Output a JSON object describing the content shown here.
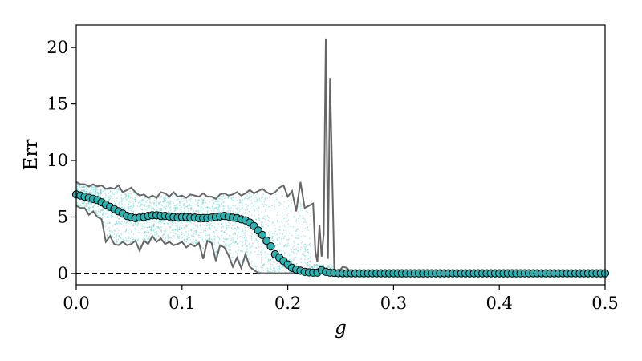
{
  "chart_data": {
    "type": "scatter",
    "xlabel": "g",
    "ylabel": "Err",
    "xlim": [
      0.0,
      0.5
    ],
    "ylim": [
      -1.0,
      22.0
    ],
    "x_ticks": [
      0.0,
      0.1,
      0.2,
      0.3,
      0.4,
      0.5
    ],
    "x_tick_labels": [
      "0.0",
      "0.1",
      "0.2",
      "0.3",
      "0.4",
      "0.5"
    ],
    "y_ticks": [
      0,
      5,
      10,
      15,
      20
    ],
    "y_tick_labels": [
      "0",
      "5",
      "10",
      "15",
      "20"
    ],
    "grid": false,
    "reference_line": {
      "y": 0.0,
      "x_range": [
        0.0,
        0.2
      ],
      "style": "dashed"
    },
    "colors": {
      "markers_fill": "#2bb3b3",
      "markers_edge": "#000000",
      "envelope": "#666666",
      "samples": "#34c4c4",
      "reference": "#000000"
    },
    "series": [
      {
        "role": "mean",
        "x": [
          0.0,
          0.004,
          0.008,
          0.012,
          0.016,
          0.02,
          0.024,
          0.028,
          0.032,
          0.036,
          0.04,
          0.044,
          0.048,
          0.052,
          0.056,
          0.06,
          0.064,
          0.068,
          0.072,
          0.076,
          0.08,
          0.084,
          0.088,
          0.092,
          0.096,
          0.1,
          0.104,
          0.108,
          0.112,
          0.116,
          0.12,
          0.124,
          0.128,
          0.132,
          0.136,
          0.14,
          0.144,
          0.148,
          0.152,
          0.156,
          0.16,
          0.164,
          0.168,
          0.172,
          0.176,
          0.18,
          0.184,
          0.188,
          0.192,
          0.196,
          0.2,
          0.204,
          0.208,
          0.212,
          0.216,
          0.22,
          0.224,
          0.228,
          0.232,
          0.236,
          0.24,
          0.244,
          0.248,
          0.252,
          0.256,
          0.26,
          0.264,
          0.268,
          0.272,
          0.276,
          0.28,
          0.284,
          0.288,
          0.292,
          0.296,
          0.3,
          0.304,
          0.308,
          0.312,
          0.316,
          0.32,
          0.324,
          0.328,
          0.332,
          0.336,
          0.34,
          0.344,
          0.348,
          0.352,
          0.356,
          0.36,
          0.364,
          0.368,
          0.372,
          0.376,
          0.38,
          0.384,
          0.388,
          0.392,
          0.396,
          0.4,
          0.404,
          0.408,
          0.412,
          0.416,
          0.42,
          0.424,
          0.428,
          0.432,
          0.436,
          0.44,
          0.444,
          0.448,
          0.452,
          0.456,
          0.46,
          0.464,
          0.468,
          0.472,
          0.476,
          0.48,
          0.484,
          0.488,
          0.492,
          0.496,
          0.5
        ],
        "y": [
          7.0,
          6.9,
          6.8,
          6.7,
          6.6,
          6.5,
          6.3,
          6.1,
          5.9,
          5.7,
          5.5,
          5.3,
          5.1,
          5.0,
          4.9,
          4.95,
          5.0,
          5.1,
          5.15,
          5.15,
          5.1,
          5.1,
          5.05,
          5.0,
          4.95,
          5.0,
          5.0,
          4.95,
          4.95,
          4.9,
          4.9,
          4.9,
          4.95,
          5.0,
          5.05,
          5.1,
          5.05,
          4.95,
          4.9,
          4.8,
          4.7,
          4.5,
          4.2,
          3.8,
          3.4,
          2.9,
          2.4,
          1.7,
          1.4,
          1.1,
          0.8,
          0.5,
          0.35,
          0.25,
          0.15,
          0.1,
          0.08,
          0.08,
          0.3,
          0.15,
          0.08,
          0.05,
          0.03,
          0.02,
          0.02,
          0.02,
          0.02,
          0.02,
          0.02,
          0.02,
          0.02,
          0.02,
          0.02,
          0.02,
          0.02,
          0.02,
          0.02,
          0.02,
          0.02,
          0.02,
          0.02,
          0.02,
          0.02,
          0.02,
          0.02,
          0.02,
          0.02,
          0.02,
          0.02,
          0.02,
          0.02,
          0.02,
          0.02,
          0.02,
          0.02,
          0.02,
          0.02,
          0.02,
          0.02,
          0.02,
          0.02,
          0.02,
          0.02,
          0.02,
          0.02,
          0.02,
          0.02,
          0.02,
          0.02,
          0.02,
          0.02,
          0.02,
          0.02,
          0.02,
          0.02,
          0.02,
          0.02,
          0.02,
          0.02,
          0.02,
          0.02,
          0.02,
          0.02,
          0.02,
          0.02,
          0.02
        ]
      },
      {
        "role": "upper",
        "x": [
          0.0,
          0.004,
          0.008,
          0.012,
          0.016,
          0.02,
          0.024,
          0.028,
          0.032,
          0.036,
          0.04,
          0.044,
          0.048,
          0.052,
          0.056,
          0.06,
          0.064,
          0.068,
          0.072,
          0.076,
          0.08,
          0.084,
          0.088,
          0.092,
          0.096,
          0.1,
          0.104,
          0.108,
          0.112,
          0.116,
          0.12,
          0.124,
          0.128,
          0.132,
          0.136,
          0.14,
          0.144,
          0.148,
          0.152,
          0.156,
          0.16,
          0.164,
          0.168,
          0.172,
          0.176,
          0.18,
          0.184,
          0.188,
          0.192,
          0.196,
          0.2,
          0.204,
          0.208,
          0.212,
          0.216,
          0.22,
          0.224,
          0.226,
          0.228,
          0.23,
          0.232,
          0.234,
          0.236,
          0.238,
          0.24,
          0.244,
          0.248,
          0.252,
          0.256,
          0.26,
          0.5
        ],
        "y": [
          8.1,
          7.9,
          7.9,
          7.7,
          7.9,
          7.7,
          7.8,
          7.5,
          7.6,
          7.5,
          7.8,
          7.2,
          7.4,
          7.6,
          7.2,
          6.9,
          7.0,
          6.7,
          6.9,
          6.7,
          7.2,
          7.1,
          6.8,
          7.2,
          6.8,
          6.9,
          6.7,
          7.0,
          6.9,
          6.8,
          7.1,
          6.8,
          6.8,
          6.6,
          7.0,
          7.1,
          6.9,
          7.0,
          7.2,
          6.9,
          7.1,
          7.4,
          7.1,
          7.3,
          7.5,
          7.2,
          7.0,
          7.2,
          7.6,
          7.8,
          6.8,
          7.3,
          5.5,
          8.1,
          5.8,
          6.0,
          6.2,
          2.0,
          1.0,
          4.3,
          1.5,
          3.5,
          20.8,
          1.3,
          17.3,
          0.3,
          0.15,
          0.6,
          0.5,
          0.05,
          0.05
        ]
      },
      {
        "role": "lower",
        "x": [
          0.0,
          0.004,
          0.008,
          0.012,
          0.016,
          0.02,
          0.024,
          0.028,
          0.032,
          0.036,
          0.04,
          0.044,
          0.048,
          0.052,
          0.056,
          0.06,
          0.064,
          0.068,
          0.072,
          0.076,
          0.08,
          0.084,
          0.088,
          0.092,
          0.096,
          0.1,
          0.104,
          0.108,
          0.112,
          0.116,
          0.12,
          0.124,
          0.128,
          0.132,
          0.136,
          0.14,
          0.144,
          0.148,
          0.152,
          0.156,
          0.16,
          0.164,
          0.168,
          0.172,
          0.176,
          0.5
        ],
        "y": [
          6.0,
          5.8,
          5.8,
          5.2,
          5.5,
          5.0,
          4.8,
          2.8,
          3.3,
          2.6,
          2.5,
          2.8,
          2.5,
          2.6,
          2.9,
          2.0,
          2.9,
          2.6,
          3.3,
          2.8,
          3.1,
          2.6,
          2.8,
          2.5,
          2.6,
          2.8,
          2.3,
          2.6,
          2.4,
          2.7,
          1.3,
          2.9,
          2.7,
          1.1,
          2.5,
          2.3,
          1.6,
          0.6,
          1.4,
          0.5,
          1.7,
          0.6,
          0.3,
          0.05,
          0.02,
          0.02
        ]
      }
    ]
  }
}
